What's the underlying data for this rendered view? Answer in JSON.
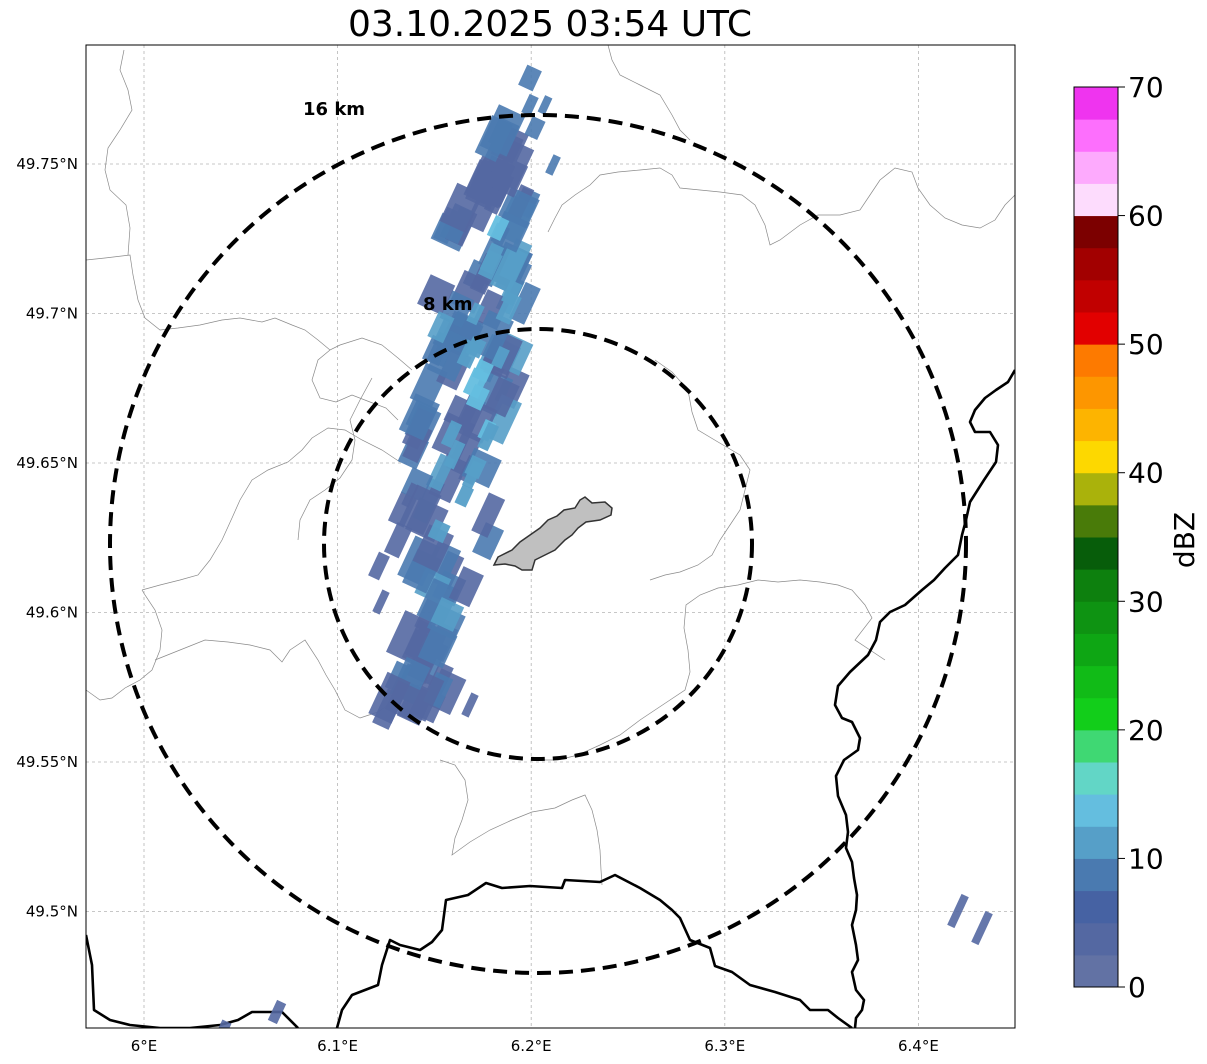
{
  "title": "03.10.2025 03:54 UTC",
  "axes": {
    "lon_ticks": [
      {
        "value": 6.0,
        "label": "6°E"
      },
      {
        "value": 6.1,
        "label": "6.1°E"
      },
      {
        "value": 6.2,
        "label": "6.2°E"
      },
      {
        "value": 6.3,
        "label": "6.3°E"
      },
      {
        "value": 6.4,
        "label": "6.4°E"
      }
    ],
    "lat_ticks": [
      {
        "value": 49.75,
        "label": "49.75°N"
      },
      {
        "value": 49.7,
        "label": "49.7°N"
      },
      {
        "value": 49.65,
        "label": "49.65°N"
      },
      {
        "value": 49.6,
        "label": "49.6°N"
      },
      {
        "value": 49.55,
        "label": "49.55°N"
      },
      {
        "value": 49.5,
        "label": "49.5°N"
      }
    ],
    "lon_range": [
      5.97,
      6.45
    ],
    "lat_range": [
      49.46,
      49.79
    ]
  },
  "range_rings": [
    {
      "label": "8 km",
      "radius_km": 8
    },
    {
      "label": "16 km",
      "radius_km": 16
    }
  ],
  "colorbar": {
    "label": "dBZ",
    "min": 0,
    "max": 70,
    "tick_labels": [
      "0",
      "10",
      "20",
      "30",
      "40",
      "50",
      "60",
      "70"
    ],
    "colors": [
      "#6272a4",
      "#5468a2",
      "#4662a3",
      "#4a7ab0",
      "#569fc8",
      "#64bedf",
      "#62d6c6",
      "#3fd873",
      "#12ce1a",
      "#11bb17",
      "#0ea614",
      "#0e9312",
      "#0d800e",
      "#075d0a",
      "#497b09",
      "#aab20b",
      "#fdd800",
      "#fdb400",
      "#fd9600",
      "#fd7a00",
      "#e20000",
      "#c10000",
      "#a20000",
      "#7c0000",
      "#fddcfd",
      "#fdaafd",
      "#fd6ffd",
      "#ef34ef"
    ]
  },
  "colors": {
    "echo_dark": "#5468a2",
    "echo_mid": "#4a7ab0",
    "echo_light": "#569fc8",
    "echo_cyan": "#64bedf",
    "city_fill": "#c0c0c0"
  }
}
